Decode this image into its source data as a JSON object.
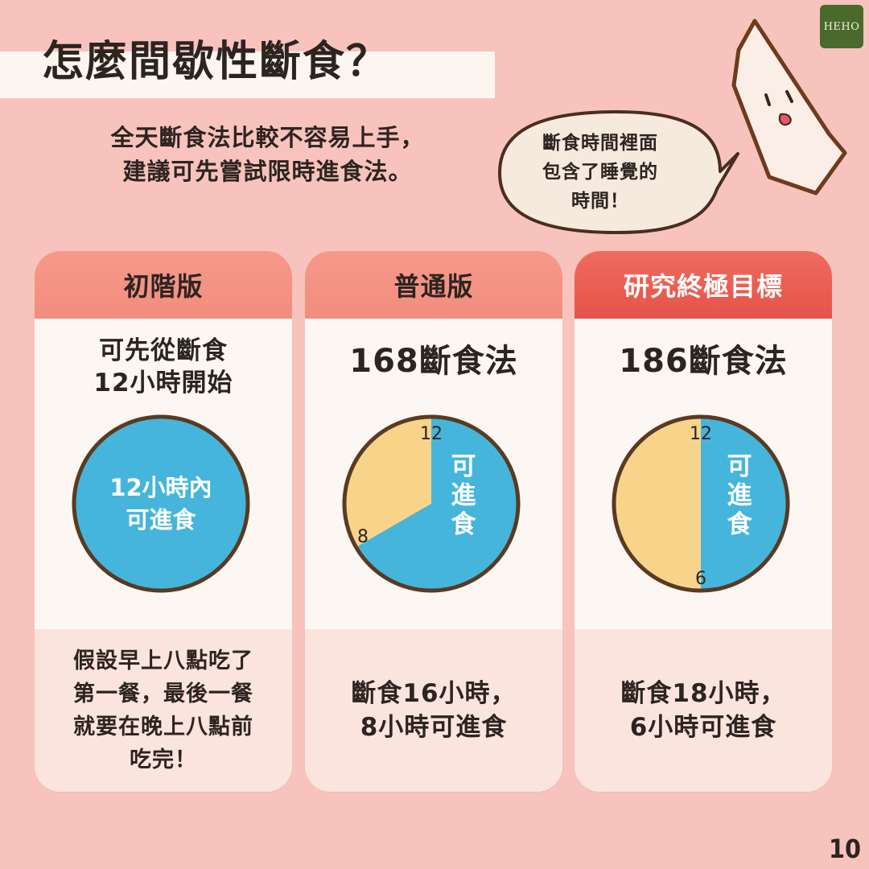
{
  "brand": {
    "logo_text": "HEHO"
  },
  "header": {
    "title": "怎麼間歇性斷食？",
    "subtitle_lines": [
      "全天斷食法比較不容易上手，",
      "建議可先嘗試限時進食法。"
    ]
  },
  "bubble": {
    "lines": [
      "斷食時間裡面",
      "包含了睡覺的",
      "時間！"
    ]
  },
  "colors": {
    "background": "#f7c3bc",
    "card": "#fcf7f2",
    "header_light": "#f28d7d",
    "header_strong": "#e5534a",
    "eating_blue": "#45b5dc",
    "fasting_yellow": "#f8d48a",
    "outline": "#5a3a22",
    "logo_green": "#4a6a2b"
  },
  "cards": [
    {
      "header": "初階版",
      "intro_lines": [
        "可先從斷食",
        "12小時開始"
      ],
      "clock": {
        "fasting_hours": 0,
        "eating_label_lines": [
          "12小時內",
          "可進食"
        ]
      },
      "bottom_lines": [
        "假設早上八點吃了",
        "第一餐，最後一餐",
        "就要在晚上八點前",
        "吃完！"
      ]
    },
    {
      "header": "普通版",
      "method": "168斷食法",
      "clock": {
        "fasting_hours": 16,
        "eating_hours": 8,
        "label_top": "12",
        "label_other": "8",
        "eating_label": "可進食"
      },
      "bottom_lines": [
        "斷食16小時，",
        "8小時可進食"
      ]
    },
    {
      "header": "研究終極目標",
      "method": "186斷食法",
      "clock": {
        "fasting_hours": 18,
        "eating_hours": 6,
        "label_top": "12",
        "label_other": "6",
        "eating_label": "可進食"
      },
      "bottom_lines": [
        "斷食18小時，",
        "6小時可進食"
      ]
    }
  ],
  "page_number": "10"
}
